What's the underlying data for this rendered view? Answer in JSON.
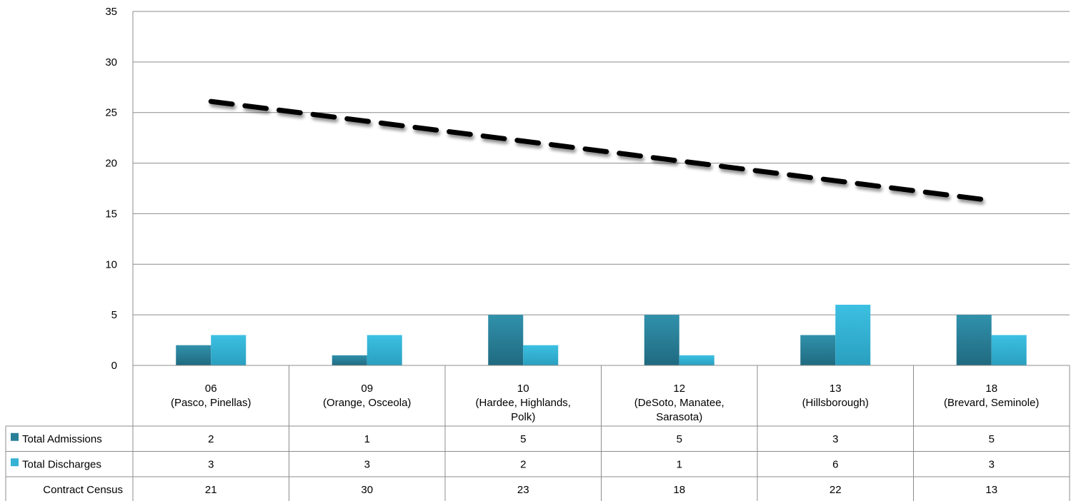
{
  "chart_data": {
    "type": "bar",
    "ylim": [
      0,
      35
    ],
    "yticks": [
      0,
      5,
      10,
      15,
      20,
      25,
      30,
      35
    ],
    "grid": true,
    "legend": "data-table",
    "categories": [
      {
        "code": "06",
        "lines": [
          "(Pasco, Pinellas)"
        ]
      },
      {
        "code": "09",
        "lines": [
          "(Orange, Osceola)"
        ]
      },
      {
        "code": "10",
        "lines": [
          "(Hardee, Highlands,",
          "Polk)"
        ]
      },
      {
        "code": "12",
        "lines": [
          "(DeSoto, Manatee,",
          "Sarasota)"
        ]
      },
      {
        "code": "13",
        "lines": [
          "(Hillsborough)"
        ]
      },
      {
        "code": "18",
        "lines": [
          "(Brevard, Seminole)"
        ]
      }
    ],
    "series": [
      {
        "name": "Total Admissions",
        "type": "bar",
        "color": "#2a7f98",
        "values": [
          2,
          1,
          5,
          5,
          3,
          5
        ]
      },
      {
        "name": "Total Discharges",
        "type": "bar",
        "color": "#35b2d4",
        "values": [
          3,
          3,
          2,
          1,
          6,
          3
        ]
      },
      {
        "name": "Contract Census",
        "type": "table-only",
        "values": [
          21,
          30,
          23,
          18,
          22,
          13
        ]
      }
    ],
    "trendline": {
      "style": "dashed",
      "color": "#000000",
      "start": 26.1,
      "end": 16.3
    }
  }
}
